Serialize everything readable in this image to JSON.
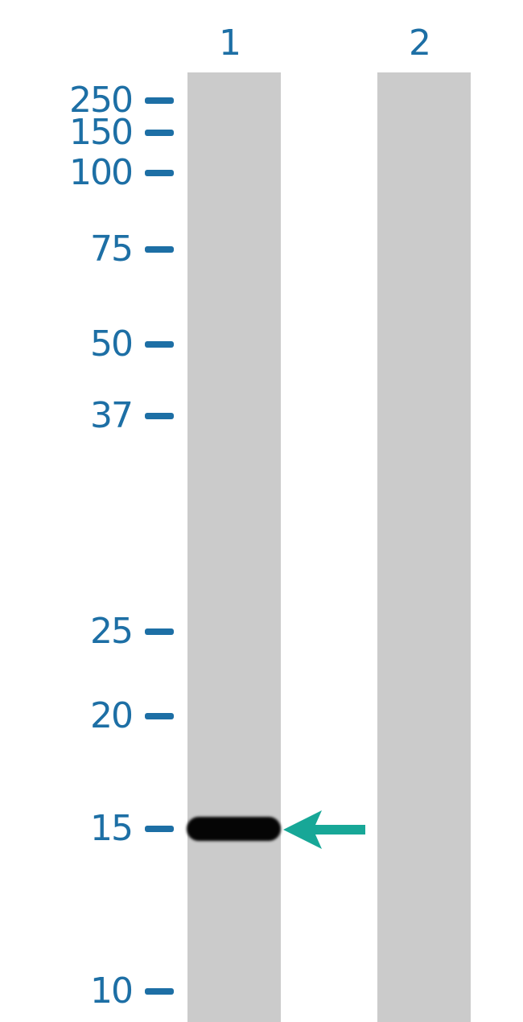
{
  "lanes": [
    {
      "label": "1"
    },
    {
      "label": "2"
    }
  ],
  "markers": [
    {
      "label": "250"
    },
    {
      "label": "150"
    },
    {
      "label": "100"
    },
    {
      "label": "75"
    },
    {
      "label": "50"
    },
    {
      "label": "37"
    },
    {
      "label": "25"
    },
    {
      "label": "20"
    },
    {
      "label": "15"
    },
    {
      "label": "10"
    }
  ],
  "band": {
    "lane": "1",
    "marker": "15"
  },
  "colors": {
    "marker_text": "#1d6fa5",
    "lane": "#cbcbcb",
    "arrow": "#17a797",
    "band": "#050505"
  },
  "arrow_icon": "arrow-left-icon"
}
